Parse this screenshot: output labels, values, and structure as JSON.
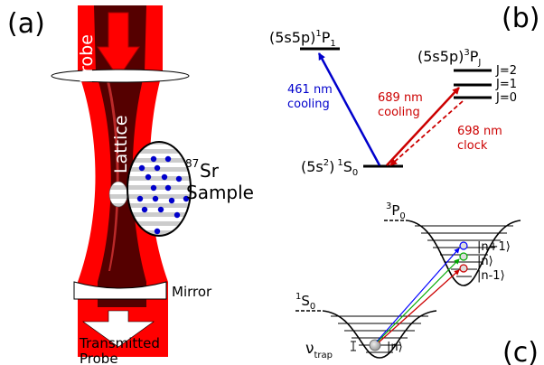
{
  "panel_a": {
    "label": "(a)",
    "probe_label": "Probe",
    "lattice_label": "Lattice",
    "sample_isotope": "87",
    "sample_element": "Sr",
    "sample_label": "Sample",
    "mirror_label": "Mirror",
    "transmitted_line1": "Transmitted",
    "transmitted_line2": "Probe",
    "colors": {
      "beam_red": "#ff0000",
      "lattice_dark": "#550000",
      "atom_blue": "#0000cc"
    }
  },
  "panel_b": {
    "label": "(b)",
    "state_1p1": {
      "config": "(5s5p)",
      "sup": "1",
      "term": "P",
      "sub": "1"
    },
    "state_3pj": {
      "config": "(5s5p)",
      "sup": "3",
      "term": "P",
      "sub": "J"
    },
    "state_1s0": {
      "config": "(5s",
      "config_sup": "2",
      "config_close": ")",
      "sup": "1",
      "term": "S",
      "sub": "0"
    },
    "levels": [
      "J=2",
      "J=1",
      "J=0"
    ],
    "transitions": [
      {
        "line1": "461 nm",
        "line2": "cooling",
        "color": "#0000cc"
      },
      {
        "line1": "689 nm",
        "line2": "cooling",
        "color": "#cc0000"
      },
      {
        "line1": "698 nm",
        "line2": "clock",
        "color": "#cc0000"
      }
    ]
  },
  "panel_c": {
    "label": "(c)",
    "upper_state": {
      "sup": "3",
      "term": "P",
      "sub": "0"
    },
    "lower_state": {
      "sup": "1",
      "term": "S",
      "sub": "0"
    },
    "upper_levels": [
      "|n+1⟩",
      "|n⟩",
      "|n-1⟩"
    ],
    "lower_level": "|n⟩",
    "trap_symbol": "ν",
    "trap_sub": "trap",
    "arrow_colors": [
      "#0000ff",
      "#00aa00",
      "#cc0000"
    ]
  }
}
